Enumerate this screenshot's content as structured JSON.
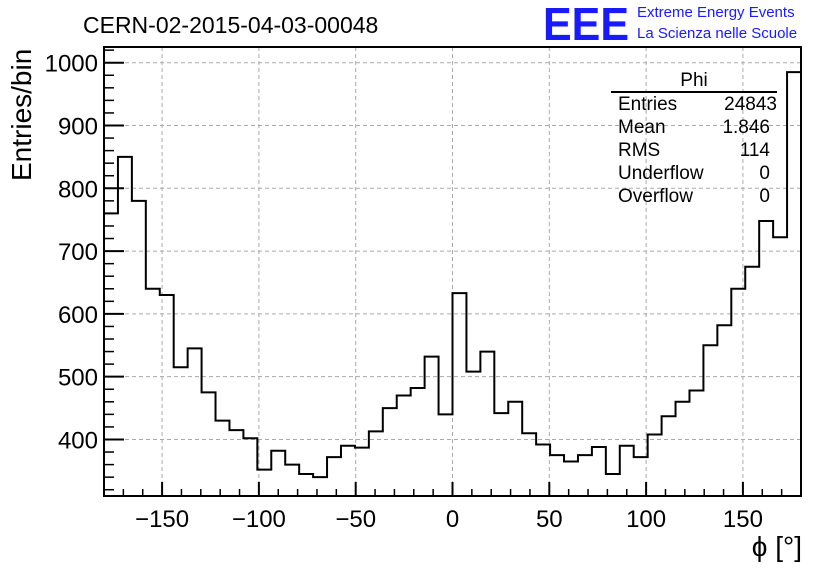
{
  "title": "CERN-02-2015-04-03-00048",
  "logo": {
    "mark": "EEE",
    "line1": "Extreme Energy Events",
    "line2": "La Scienza nelle Scuole",
    "color": "#1a1aff"
  },
  "stats": {
    "name": "Phi",
    "rows": [
      {
        "label": "Entries",
        "value": "24843"
      },
      {
        "label": "Mean",
        "value": "1.846"
      },
      {
        "label": "RMS",
        "value": "114"
      },
      {
        "label": "Underflow",
        "value": "0"
      },
      {
        "label": "Overflow",
        "value": "0"
      }
    ]
  },
  "chart_data": {
    "type": "bar",
    "histogram": true,
    "xlabel": "ϕ [°]",
    "ylabel": "Entries/bin",
    "xlim": [
      -180,
      180
    ],
    "ylim": [
      310,
      1025
    ],
    "grid": true,
    "x_ticks": [
      -150,
      -100,
      -50,
      0,
      50,
      100,
      150
    ],
    "x_tick_labels": [
      "−150",
      "−100",
      "−50",
      "0",
      "50",
      "100",
      "150"
    ],
    "y_ticks": [
      400,
      500,
      600,
      700,
      800,
      900,
      1000
    ],
    "y_tick_labels": [
      "400",
      "500",
      "600",
      "700",
      "800",
      "900",
      "1000"
    ],
    "bin_width": 7.2,
    "bin_start": -180,
    "values": [
      760,
      850,
      780,
      640,
      630,
      515,
      545,
      475,
      430,
      415,
      402,
      352,
      382,
      360,
      345,
      340,
      372,
      390,
      387,
      413,
      450,
      470,
      482,
      532,
      440,
      633,
      508,
      540,
      442,
      460,
      410,
      392,
      375,
      365,
      375,
      388,
      345,
      390,
      372,
      408,
      437,
      460,
      478,
      550,
      582,
      640,
      675,
      748,
      722,
      985
    ]
  }
}
